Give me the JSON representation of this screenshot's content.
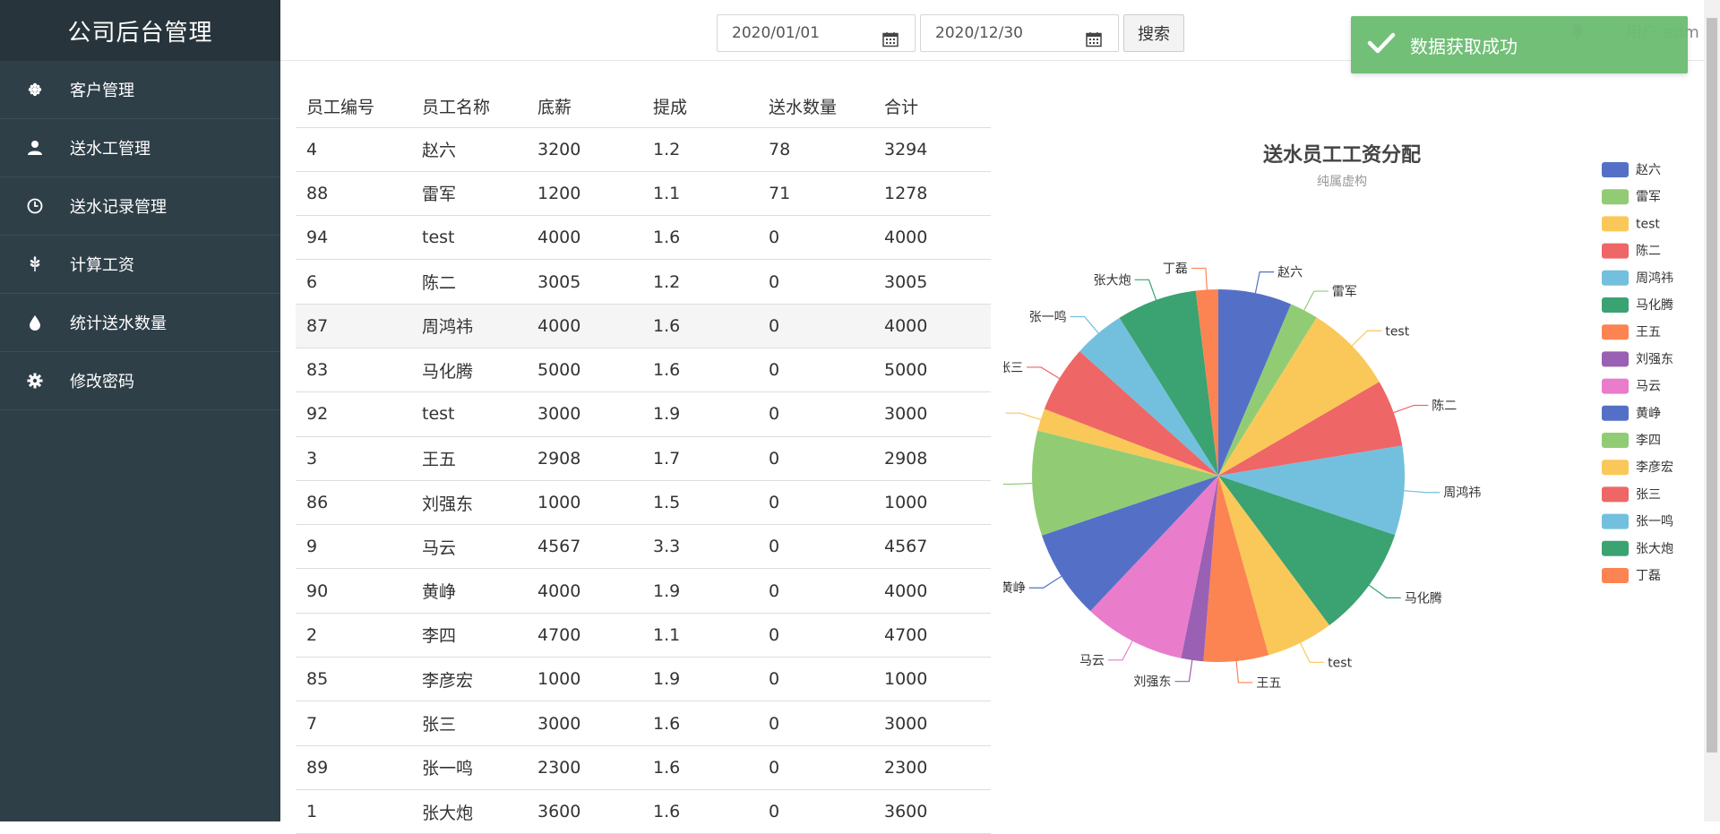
{
  "app": {
    "title": "公司后台管理"
  },
  "sidebar": {
    "items": [
      {
        "label": "客户管理",
        "icon": "flower-icon"
      },
      {
        "label": "送水工管理",
        "icon": "user-icon"
      },
      {
        "label": "送水记录管理",
        "icon": "clock-icon"
      },
      {
        "label": "计算工资",
        "icon": "grain-icon"
      },
      {
        "label": "统计送水数量",
        "icon": "drop-icon"
      },
      {
        "label": "修改密码",
        "icon": "gear-icon"
      }
    ]
  },
  "toolbar": {
    "start_date": "2020/01/01",
    "end_date": "2020/12/30",
    "search_label": "搜索",
    "user_label": "用户:adm"
  },
  "toast": {
    "message": "数据获取成功"
  },
  "table": {
    "headers": [
      "员工编号",
      "员工名称",
      "底薪",
      "提成",
      "送水数量",
      "合计"
    ],
    "rows": [
      [
        "4",
        "赵六",
        "3200",
        "1.2",
        "78",
        "3294"
      ],
      [
        "88",
        "雷军",
        "1200",
        "1.1",
        "71",
        "1278"
      ],
      [
        "94",
        "test",
        "4000",
        "1.6",
        "0",
        "4000"
      ],
      [
        "6",
        "陈二",
        "3005",
        "1.2",
        "0",
        "3005"
      ],
      [
        "87",
        "周鸿祎",
        "4000",
        "1.6",
        "0",
        "4000"
      ],
      [
        "83",
        "马化腾",
        "5000",
        "1.6",
        "0",
        "5000"
      ],
      [
        "92",
        "test",
        "3000",
        "1.9",
        "0",
        "3000"
      ],
      [
        "3",
        "王五",
        "2908",
        "1.7",
        "0",
        "2908"
      ],
      [
        "86",
        "刘强东",
        "1000",
        "1.5",
        "0",
        "1000"
      ],
      [
        "9",
        "马云",
        "4567",
        "3.3",
        "0",
        "4567"
      ],
      [
        "90",
        "黄峥",
        "4000",
        "1.9",
        "0",
        "4000"
      ],
      [
        "2",
        "李四",
        "4700",
        "1.1",
        "0",
        "4700"
      ],
      [
        "85",
        "李彦宏",
        "1000",
        "1.9",
        "0",
        "1000"
      ],
      [
        "7",
        "张三",
        "3000",
        "1.6",
        "0",
        "3000"
      ],
      [
        "89",
        "张一鸣",
        "2300",
        "1.6",
        "0",
        "2300"
      ],
      [
        "1",
        "张大炮",
        "3600",
        "1.6",
        "0",
        "3600"
      ]
    ]
  },
  "chart_data": {
    "type": "pie",
    "title": "送水员工工资分配",
    "subtitle": "纯属虚构",
    "legend_position": "right",
    "slices": [
      {
        "name": "赵六",
        "value": 3294,
        "color": "#5470c6"
      },
      {
        "name": "雷军",
        "value": 1278,
        "color": "#91cc75"
      },
      {
        "name": "test",
        "value": 4000,
        "color": "#fac858"
      },
      {
        "name": "陈二",
        "value": 3005,
        "color": "#ee6666"
      },
      {
        "name": "周鸿祎",
        "value": 4000,
        "color": "#73c0de"
      },
      {
        "name": "马化腾",
        "value": 5000,
        "color": "#3ba272"
      },
      {
        "name": "test",
        "value": 3000,
        "color": "#fac858"
      },
      {
        "name": "王五",
        "value": 2908,
        "color": "#fc8452"
      },
      {
        "name": "刘强东",
        "value": 1000,
        "color": "#9a60b4"
      },
      {
        "name": "马云",
        "value": 4567,
        "color": "#ea7ccc"
      },
      {
        "name": "黄峥",
        "value": 4000,
        "color": "#5470c6"
      },
      {
        "name": "李四",
        "value": 4700,
        "color": "#91cc75"
      },
      {
        "name": "李彦宏",
        "value": 1000,
        "color": "#fac858"
      },
      {
        "name": "张三",
        "value": 3000,
        "color": "#ee6666"
      },
      {
        "name": "张一鸣",
        "value": 2300,
        "color": "#73c0de"
      },
      {
        "name": "张大炮",
        "value": 3600,
        "color": "#3ba272"
      },
      {
        "name": "丁磊",
        "value": 1000,
        "color": "#fc8452"
      }
    ],
    "legend": [
      "赵六",
      "雷军",
      "test",
      "陈二",
      "周鸿祎",
      "马化腾",
      "王五",
      "刘强东",
      "马云",
      "黄峥",
      "李四",
      "李彦宏",
      "张三",
      "张一鸣",
      "张大炮",
      "丁磊"
    ]
  },
  "colors": {
    "sidebar_bg": "#2f3f48",
    "toast_bg": "#6ebd74"
  }
}
